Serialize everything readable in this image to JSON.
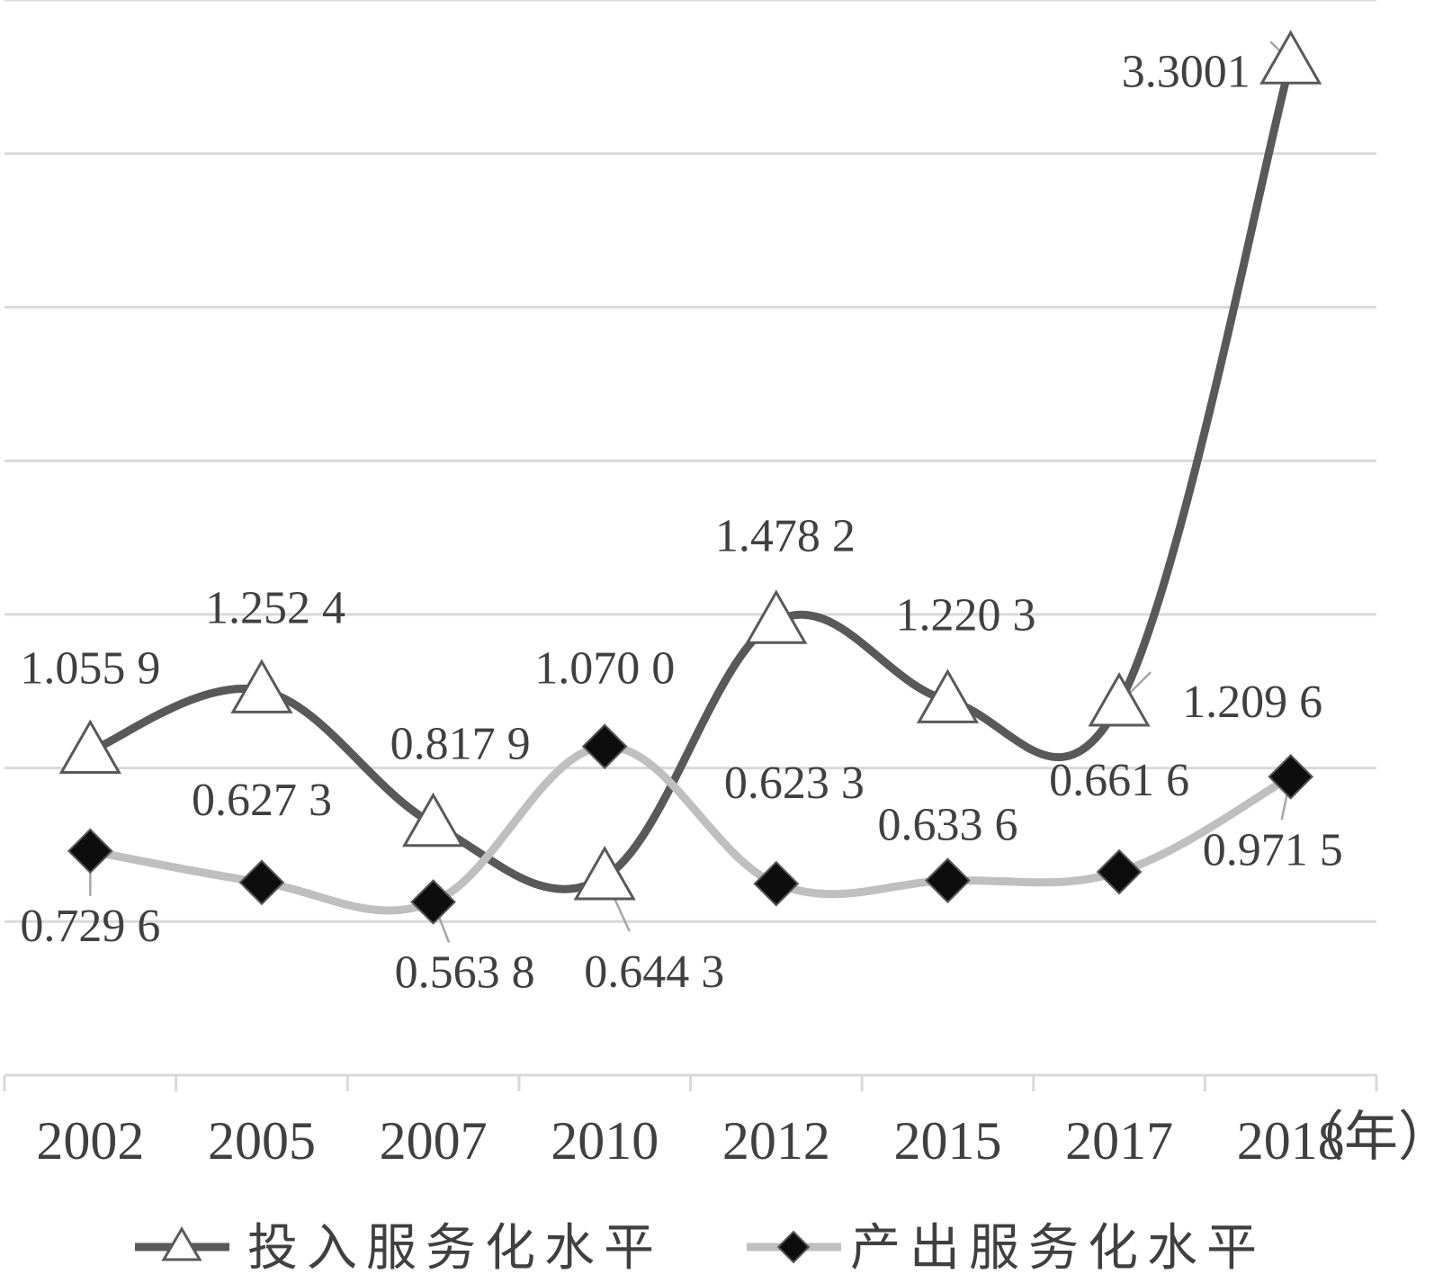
{
  "chart_data": {
    "type": "line",
    "title": "",
    "xlabel": "",
    "ylabel": "",
    "x_unit": "（年）",
    "categories": [
      "2002",
      "2005",
      "2007",
      "2010",
      "2012",
      "2015",
      "2017",
      "2018"
    ],
    "ylim": [
      0,
      3.5
    ],
    "y_gridlines": [
      0.5,
      1.0,
      1.5,
      2.0,
      2.5,
      3.0,
      3.5
    ],
    "y_tick_labels_shown": false,
    "grid": true,
    "legend_position": "bottom",
    "smooth": true,
    "series": [
      {
        "name": "投入服务化水平",
        "color": "#595959",
        "marker": "triangle-open",
        "values": [
          1.0559,
          1.2524,
          0.8179,
          0.6443,
          1.4782,
          1.2203,
          1.2096,
          3.3001
        ],
        "labels": [
          "1.055 9",
          "1.252 4",
          "0.817 9",
          "0.644 3",
          "1.478 2",
          "1.220 3",
          "1.209 6",
          "3.3001"
        ]
      },
      {
        "name": "产出服务化水平",
        "color": "#bfbfbf",
        "marker": "diamond-filled",
        "values": [
          0.7296,
          0.6273,
          0.5638,
          1.07,
          0.6233,
          0.6336,
          0.6616,
          0.9715
        ],
        "labels": [
          "0.729 6",
          "0.627 3",
          "0.563 8",
          "1.070 0",
          "0.623 3",
          "0.633 6",
          "0.661 6",
          "0.971 5"
        ]
      }
    ]
  }
}
